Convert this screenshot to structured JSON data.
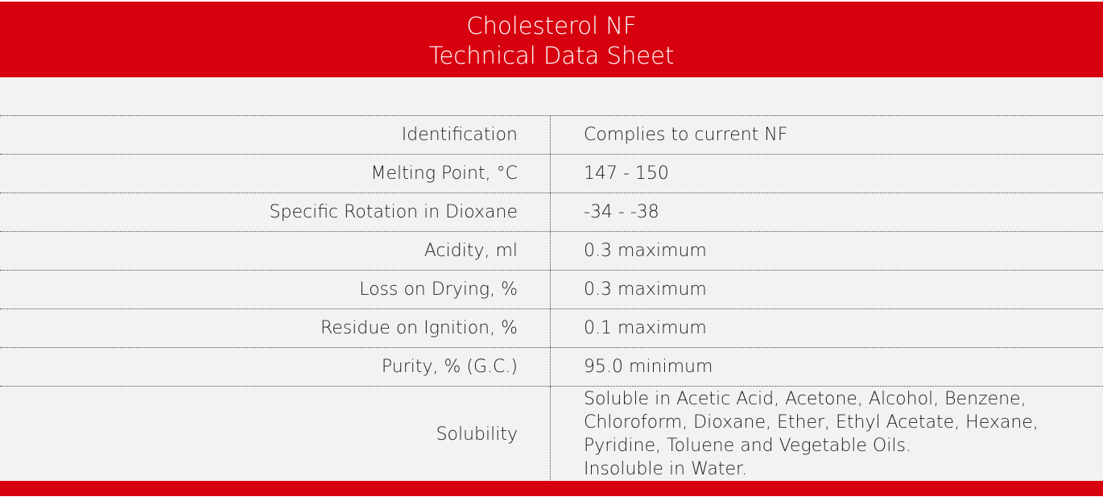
{
  "header": {
    "title_line1": "Cholesterol NF",
    "title_line2": "Technical Data Sheet",
    "color": "#d7000f"
  },
  "table": {
    "rows": [
      {
        "label": "Identification",
        "value": "Complies to current NF"
      },
      {
        "label": "Melting Point, °C",
        "value": "147 - 150"
      },
      {
        "label": "Specific Rotation in Dioxane",
        "value": "-34 - -38"
      },
      {
        "label": "Acidity, ml",
        "value": "0.3 maximum"
      },
      {
        "label": "Loss on Drying, %",
        "value": "0.3 maximum"
      },
      {
        "label": "Residue on Ignition, %",
        "value": "0.1 maximum"
      },
      {
        "label": "Purity, % (G.C.)",
        "value": "95.0 minimum"
      },
      {
        "label": "Solubility",
        "value_lines": [
          "Soluble in Acetic Acid, Acetone, Alcohol, Benzene,",
          "Chloroform, Dioxane, Ether, Ethyl Acetate, Hexane,",
          "Pyridine, Toluene and Vegetable Oils.",
          "Insoluble in Water."
        ]
      }
    ]
  }
}
